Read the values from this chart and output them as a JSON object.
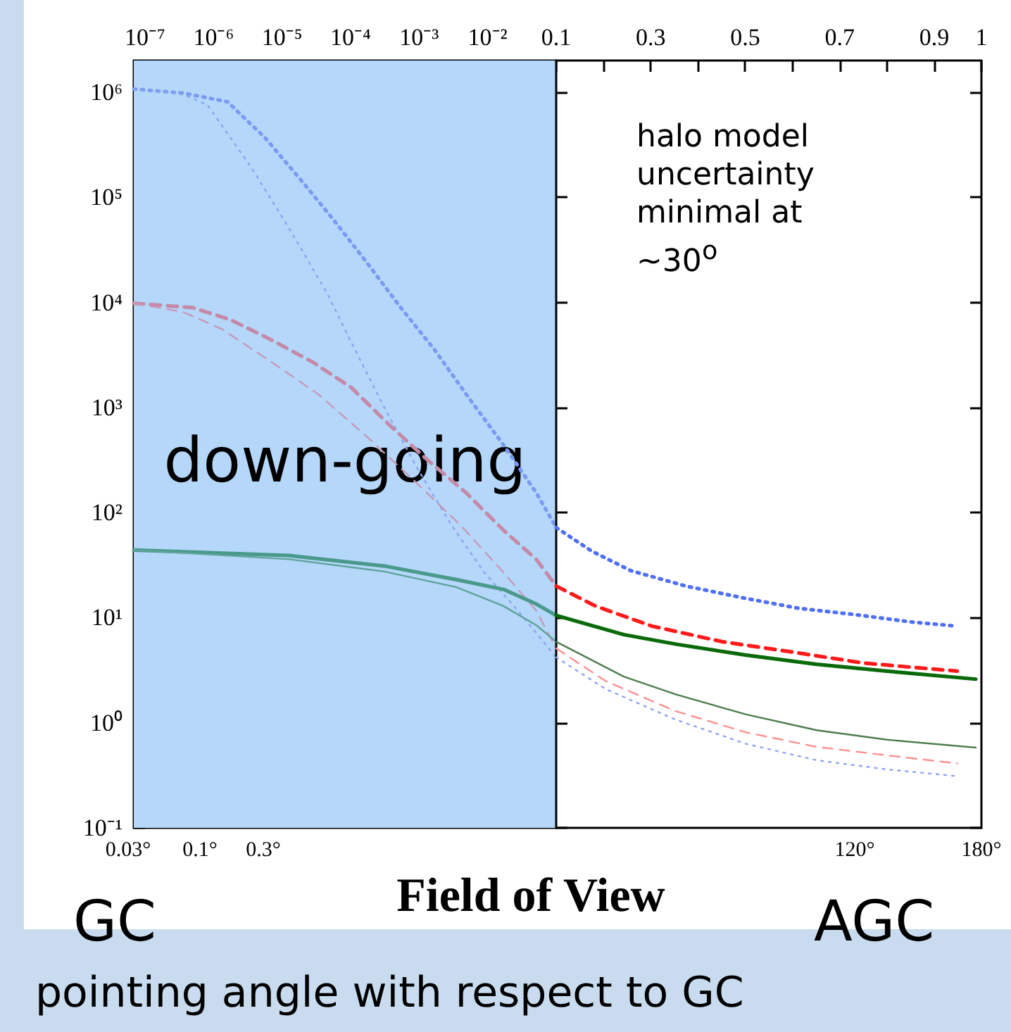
{
  "chart_data": [
    {
      "type": "line",
      "xlabel": "Field of View",
      "log": "xy",
      "xlim": [
        6.85e-08,
        0.1
      ],
      "ylim": [
        0.1,
        2000000
      ],
      "xticks": [
        {
          "value": 1e-07,
          "label": "10⁻⁷"
        },
        {
          "value": 1e-06,
          "label": "10⁻⁶"
        },
        {
          "value": 1e-05,
          "label": "10⁻⁵"
        },
        {
          "value": 0.0001,
          "label": "10⁻⁴"
        },
        {
          "value": 0.001,
          "label": "10⁻³"
        },
        {
          "value": 0.01,
          "label": "10⁻²"
        },
        0.1
      ],
      "yticks": [
        {
          "value": 0.1,
          "label": "10⁻¹"
        },
        {
          "value": 1,
          "label": "10⁰"
        },
        {
          "value": 10,
          "label": "10¹"
        },
        {
          "value": 100,
          "label": "10²"
        },
        {
          "value": 1000,
          "label": "10³"
        },
        {
          "value": 10000,
          "label": "10⁴"
        },
        {
          "value": 100000,
          "label": "10⁵"
        },
        {
          "value": 1000000,
          "label": "10⁶"
        }
      ],
      "bands": [
        {
          "axis": "x",
          "from": 6.85e-08,
          "to": 0.1,
          "label": "down-going",
          "color": "#b4d7fa"
        }
      ],
      "annotations": [
        "0.03°",
        "0.1°",
        "0.3°",
        "GC",
        "pointing angle with respect to GC"
      ],
      "series": [
        {
          "color": "#7b9bf2",
          "line_style": "dotted",
          "x": [
            6.85e-08,
            3.6e-07,
            1.6e-06,
            5.6e-06,
            1.9e-05,
            6e-05,
            0.00019,
            0.00054,
            0.0017,
            0.0048,
            0.017,
            0.051,
            0.1
          ],
          "values": [
            1070000,
            980000,
            810000,
            370000,
            145000,
            58000,
            22000,
            8900,
            3500,
            1350,
            440,
            155,
            72
          ]
        },
        {
          "color": "#8aa6f0",
          "line_style": "dotted",
          "x": [
            6.85e-08,
            3.6e-07,
            8.1e-07,
            3.5e-06,
            1.26e-05,
            4.6e-05,
            0.000117,
            0.00031,
            0.00095,
            0.00295,
            0.0089,
            0.0275,
            0.1
          ],
          "values": [
            1050000,
            950000,
            760000,
            195000,
            51000,
            12000,
            3500,
            1000,
            260,
            76,
            27,
            11.7,
            4.2
          ]
        },
        {
          "color": "#c58aa8",
          "line_style": "dashed",
          "x": [
            6.85e-08,
            5e-07,
            1.8e-06,
            6.5e-06,
            2.8e-05,
            0.000102,
            0.00037,
            0.0013,
            0.0048,
            0.017,
            0.051,
            0.1
          ],
          "values": [
            9800,
            8900,
            6800,
            4500,
            2700,
            1550,
            680,
            320,
            155,
            68,
            36,
            20
          ]
        },
        {
          "color": "#c89ab8",
          "line_style": "dashed",
          "x": [
            6.85e-08,
            3.6e-07,
            1.3e-06,
            6.5e-06,
            3.3e-05,
            0.000166,
            0.00079,
            0.004,
            0.017,
            0.051,
            0.1
          ],
          "values": [
            9800,
            8100,
            5600,
            2800,
            1350,
            540,
            210,
            76,
            27,
            11.7,
            5.1
          ]
        },
        {
          "color": "#4a9a8c",
          "line_style": "solid",
          "x": [
            6.85e-08,
            1.26e-05,
            0.00031,
            0.0035,
            0.017,
            0.051,
            0.1
          ],
          "values": [
            44,
            39,
            31,
            23,
            18.6,
            13.5,
            10.5
          ]
        },
        {
          "color": "#5fa39a",
          "line_style": "solid",
          "x": [
            6.85e-08,
            1.26e-05,
            0.00031,
            0.0035,
            0.017,
            0.051,
            0.1
          ],
          "values": [
            44,
            36,
            27.5,
            19.5,
            12.9,
            8.5,
            5.9
          ]
        }
      ]
    },
    {
      "type": "line",
      "tick_labels": "x",
      "log": "y",
      "xlim": [
        0.1,
        1
      ],
      "ylim": [
        0.1,
        2000000
      ],
      "xticks": [
        {
          "value": 0.2,
          "label": null
        },
        0.3,
        {
          "value": 0.4,
          "label": null
        },
        0.5,
        {
          "value": 0.6,
          "label": null
        },
        0.7,
        {
          "value": 0.8,
          "label": null
        },
        0.9,
        1
      ],
      "yticks": [
        0.1,
        1,
        10,
        100,
        1000,
        10000,
        100000,
        1000000
      ],
      "annotations": [
        "halo model uncertainty minimal at ~30$^{o}$",
        "120°",
        "180°",
        "AGC"
      ],
      "series": [
        {
          "color": "#4f6ff5",
          "line_style": "dotted",
          "x": [
            0.1,
            0.175,
            0.258,
            0.374,
            0.493,
            0.612,
            0.732,
            0.851,
            0.949
          ],
          "values": [
            72,
            43,
            28,
            20,
            15.5,
            12.3,
            10.7,
            9.1,
            8.3
          ]
        },
        {
          "color": "#8fa2f0",
          "line_style": "dotted",
          "x": [
            0.1,
            0.204,
            0.353,
            0.502,
            0.651,
            0.8,
            0.949
          ],
          "values": [
            4.2,
            2.1,
            1.07,
            0.63,
            0.44,
            0.36,
            0.31
          ]
        },
        {
          "color": "#ff1a1a",
          "line_style": "dashed",
          "x": [
            0.1,
            0.183,
            0.303,
            0.452,
            0.601,
            0.75,
            0.949
          ],
          "values": [
            20,
            12.9,
            8.3,
            5.9,
            4.7,
            3.7,
            3.1
          ]
        },
        {
          "color": "#ff9090",
          "line_style": "dashed",
          "x": [
            0.1,
            0.204,
            0.353,
            0.502,
            0.651,
            0.8,
            0.949
          ],
          "values": [
            5.1,
            2.5,
            1.29,
            0.81,
            0.59,
            0.49,
            0.41
          ]
        },
        {
          "color": "#0a6a0a",
          "line_style": "solid",
          "x": [
            0.1,
            0.243,
            0.353,
            0.502,
            0.651,
            0.8,
            0.988
          ],
          "values": [
            10.5,
            6.9,
            5.6,
            4.4,
            3.6,
            3.1,
            2.6
          ]
        },
        {
          "color": "#4e7e4e",
          "line_style": "solid",
          "x": [
            0.1,
            0.243,
            0.353,
            0.502,
            0.651,
            0.8,
            0.988
          ],
          "values": [
            5.9,
            2.75,
            1.86,
            1.2,
            0.85,
            0.69,
            0.58
          ]
        }
      ]
    }
  ]
}
